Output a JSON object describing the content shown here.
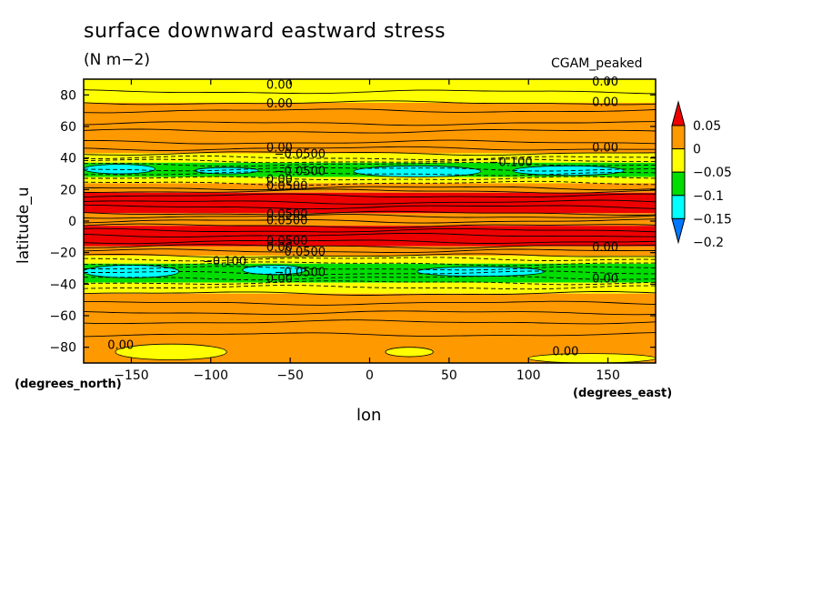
{
  "title": "surface downward eastward stress",
  "units": "(N m−2)",
  "model": "CGAM_peaked",
  "xlabel": "lon",
  "ylabel": "latitude_u",
  "x_unit": "(degrees_east)",
  "y_unit": "(degrees_north)",
  "chart_data": {
    "type": "heatmap",
    "title": "surface downward eastward stress",
    "xlabel": "lon",
    "ylabel": "latitude_u",
    "xlim": [
      -180,
      180
    ],
    "ylim": [
      -90,
      90
    ],
    "x_ticks": [
      -150,
      -100,
      -50,
      0,
      50,
      100,
      150
    ],
    "x_tick_labels": [
      "−150",
      "−100",
      "−50",
      "0",
      "50",
      "100",
      "150"
    ],
    "y_ticks": [
      80,
      60,
      40,
      20,
      0,
      -20,
      -40,
      -60,
      -80
    ],
    "y_tick_labels": [
      "80",
      "60",
      "40",
      "20",
      "0",
      "−20",
      "−40",
      "−60",
      "−80"
    ],
    "colorbar": {
      "labels": [
        "0.05",
        "0",
        "−0.05",
        "−0.1",
        "−0.15",
        "−0.2"
      ],
      "levels": [
        0.05,
        0,
        -0.05,
        -0.1,
        -0.15,
        -0.2
      ],
      "colors": [
        "#ee0000",
        "#ff9900",
        "#ffff00",
        "#00dd00",
        "#00ffff",
        "#0077ff"
      ]
    },
    "zonal_bands": [
      {
        "lat_from": 90,
        "lat_to": 75,
        "value": -0.02
      },
      {
        "lat_from": 75,
        "lat_to": 43,
        "value": 0.02
      },
      {
        "lat_from": 43,
        "lat_to": 37,
        "value": -0.04
      },
      {
        "lat_from": 37,
        "lat_to": 28,
        "value": -0.09
      },
      {
        "lat_from": 28,
        "lat_to": 24,
        "value": -0.04
      },
      {
        "lat_from": 24,
        "lat_to": 18,
        "value": 0.02
      },
      {
        "lat_from": 18,
        "lat_to": 5,
        "value": 0.07
      },
      {
        "lat_from": 5,
        "lat_to": -3,
        "value": 0.02
      },
      {
        "lat_from": -3,
        "lat_to": -16,
        "value": 0.07
      },
      {
        "lat_from": -16,
        "lat_to": -22,
        "value": 0.02
      },
      {
        "lat_from": -22,
        "lat_to": -27,
        "value": -0.04
      },
      {
        "lat_from": -27,
        "lat_to": -39,
        "value": -0.09
      },
      {
        "lat_from": -39,
        "lat_to": -46,
        "value": -0.04
      },
      {
        "lat_from": -46,
        "lat_to": -90,
        "value": 0.02
      }
    ],
    "patches": [
      {
        "lon": [
          -180,
          -135
        ],
        "lat": [
          36,
          30
        ],
        "value": -0.12
      },
      {
        "lon": [
          -110,
          -70
        ],
        "lat": [
          34,
          30
        ],
        "value": -0.12
      },
      {
        "lon": [
          -10,
          70
        ],
        "lat": [
          35,
          28
        ],
        "value": -0.12
      },
      {
        "lon": [
          90,
          160
        ],
        "lat": [
          35,
          29
        ],
        "value": -0.12
      },
      {
        "lon": [
          -180,
          -120
        ],
        "lat": [
          -28,
          -36
        ],
        "value": -0.12
      },
      {
        "lon": [
          -80,
          -40
        ],
        "lat": [
          -28,
          -34
        ],
        "value": -0.12
      },
      {
        "lon": [
          30,
          110
        ],
        "lat": [
          -29,
          -35
        ],
        "value": -0.12
      },
      {
        "lon": [
          -160,
          -90
        ],
        "lat": [
          -78,
          -88
        ],
        "value": -0.02
      },
      {
        "lon": [
          10,
          40
        ],
        "lat": [
          -80,
          -86
        ],
        "value": -0.02
      },
      {
        "lon": [
          100,
          180
        ],
        "lat": [
          -84,
          -90
        ],
        "value": -0.02
      }
    ],
    "contour_lines_lat": [
      82,
      75,
      70,
      62,
      57,
      50,
      46,
      43,
      40,
      38,
      36,
      33,
      30,
      27,
      24,
      21,
      19,
      16,
      12,
      9,
      5,
      3,
      0,
      -3,
      -6,
      -9,
      -13,
      -16,
      -19,
      -22,
      -24,
      -27,
      -30,
      -33,
      -36,
      -39,
      -42,
      -46,
      -52,
      -58,
      -64,
      -72
    ],
    "dashed_lines_lat": [
      40,
      38,
      36,
      33,
      30,
      27,
      24,
      -24,
      -27,
      -30,
      -33,
      -36,
      -39,
      -42
    ],
    "contour_labels": [
      {
        "text": "0.00",
        "lon": -65,
        "lat": 84
      },
      {
        "text": "0.00",
        "lon": -65,
        "lat": 72
      },
      {
        "text": "0.00",
        "lon": 140,
        "lat": 86
      },
      {
        "text": "0.00",
        "lon": 140,
        "lat": 73
      },
      {
        "text": "0.00",
        "lon": -65,
        "lat": 44
      },
      {
        "text": "−0.0500",
        "lon": -60,
        "lat": 40
      },
      {
        "text": "−0.0500",
        "lon": -60,
        "lat": 29
      },
      {
        "text": "−0.100",
        "lon": 75,
        "lat": 35
      },
      {
        "text": "0.00",
        "lon": 140,
        "lat": 44
      },
      {
        "text": "0.00",
        "lon": -65,
        "lat": 24
      },
      {
        "text": "0.0500",
        "lon": -65,
        "lat": 20
      },
      {
        "text": "0.0500",
        "lon": -65,
        "lat": 2
      },
      {
        "text": "0.0500",
        "lon": -65,
        "lat": -2
      },
      {
        "text": "0.0500",
        "lon": -65,
        "lat": -15
      },
      {
        "text": "0.00",
        "lon": -65,
        "lat": -19
      },
      {
        "text": "−0.0500",
        "lon": -60,
        "lat": -22
      },
      {
        "text": "−0.100",
        "lon": -105,
        "lat": -28
      },
      {
        "text": "−0.0500",
        "lon": -60,
        "lat": -35
      },
      {
        "text": "0.00",
        "lon": -65,
        "lat": -39
      },
      {
        "text": "0.00",
        "lon": 140,
        "lat": -19
      },
      {
        "text": "0.00",
        "lon": 140,
        "lat": -39
      },
      {
        "text": "0.00",
        "lon": -165,
        "lat": -81
      },
      {
        "text": "0.00",
        "lon": 115,
        "lat": -85
      }
    ]
  }
}
